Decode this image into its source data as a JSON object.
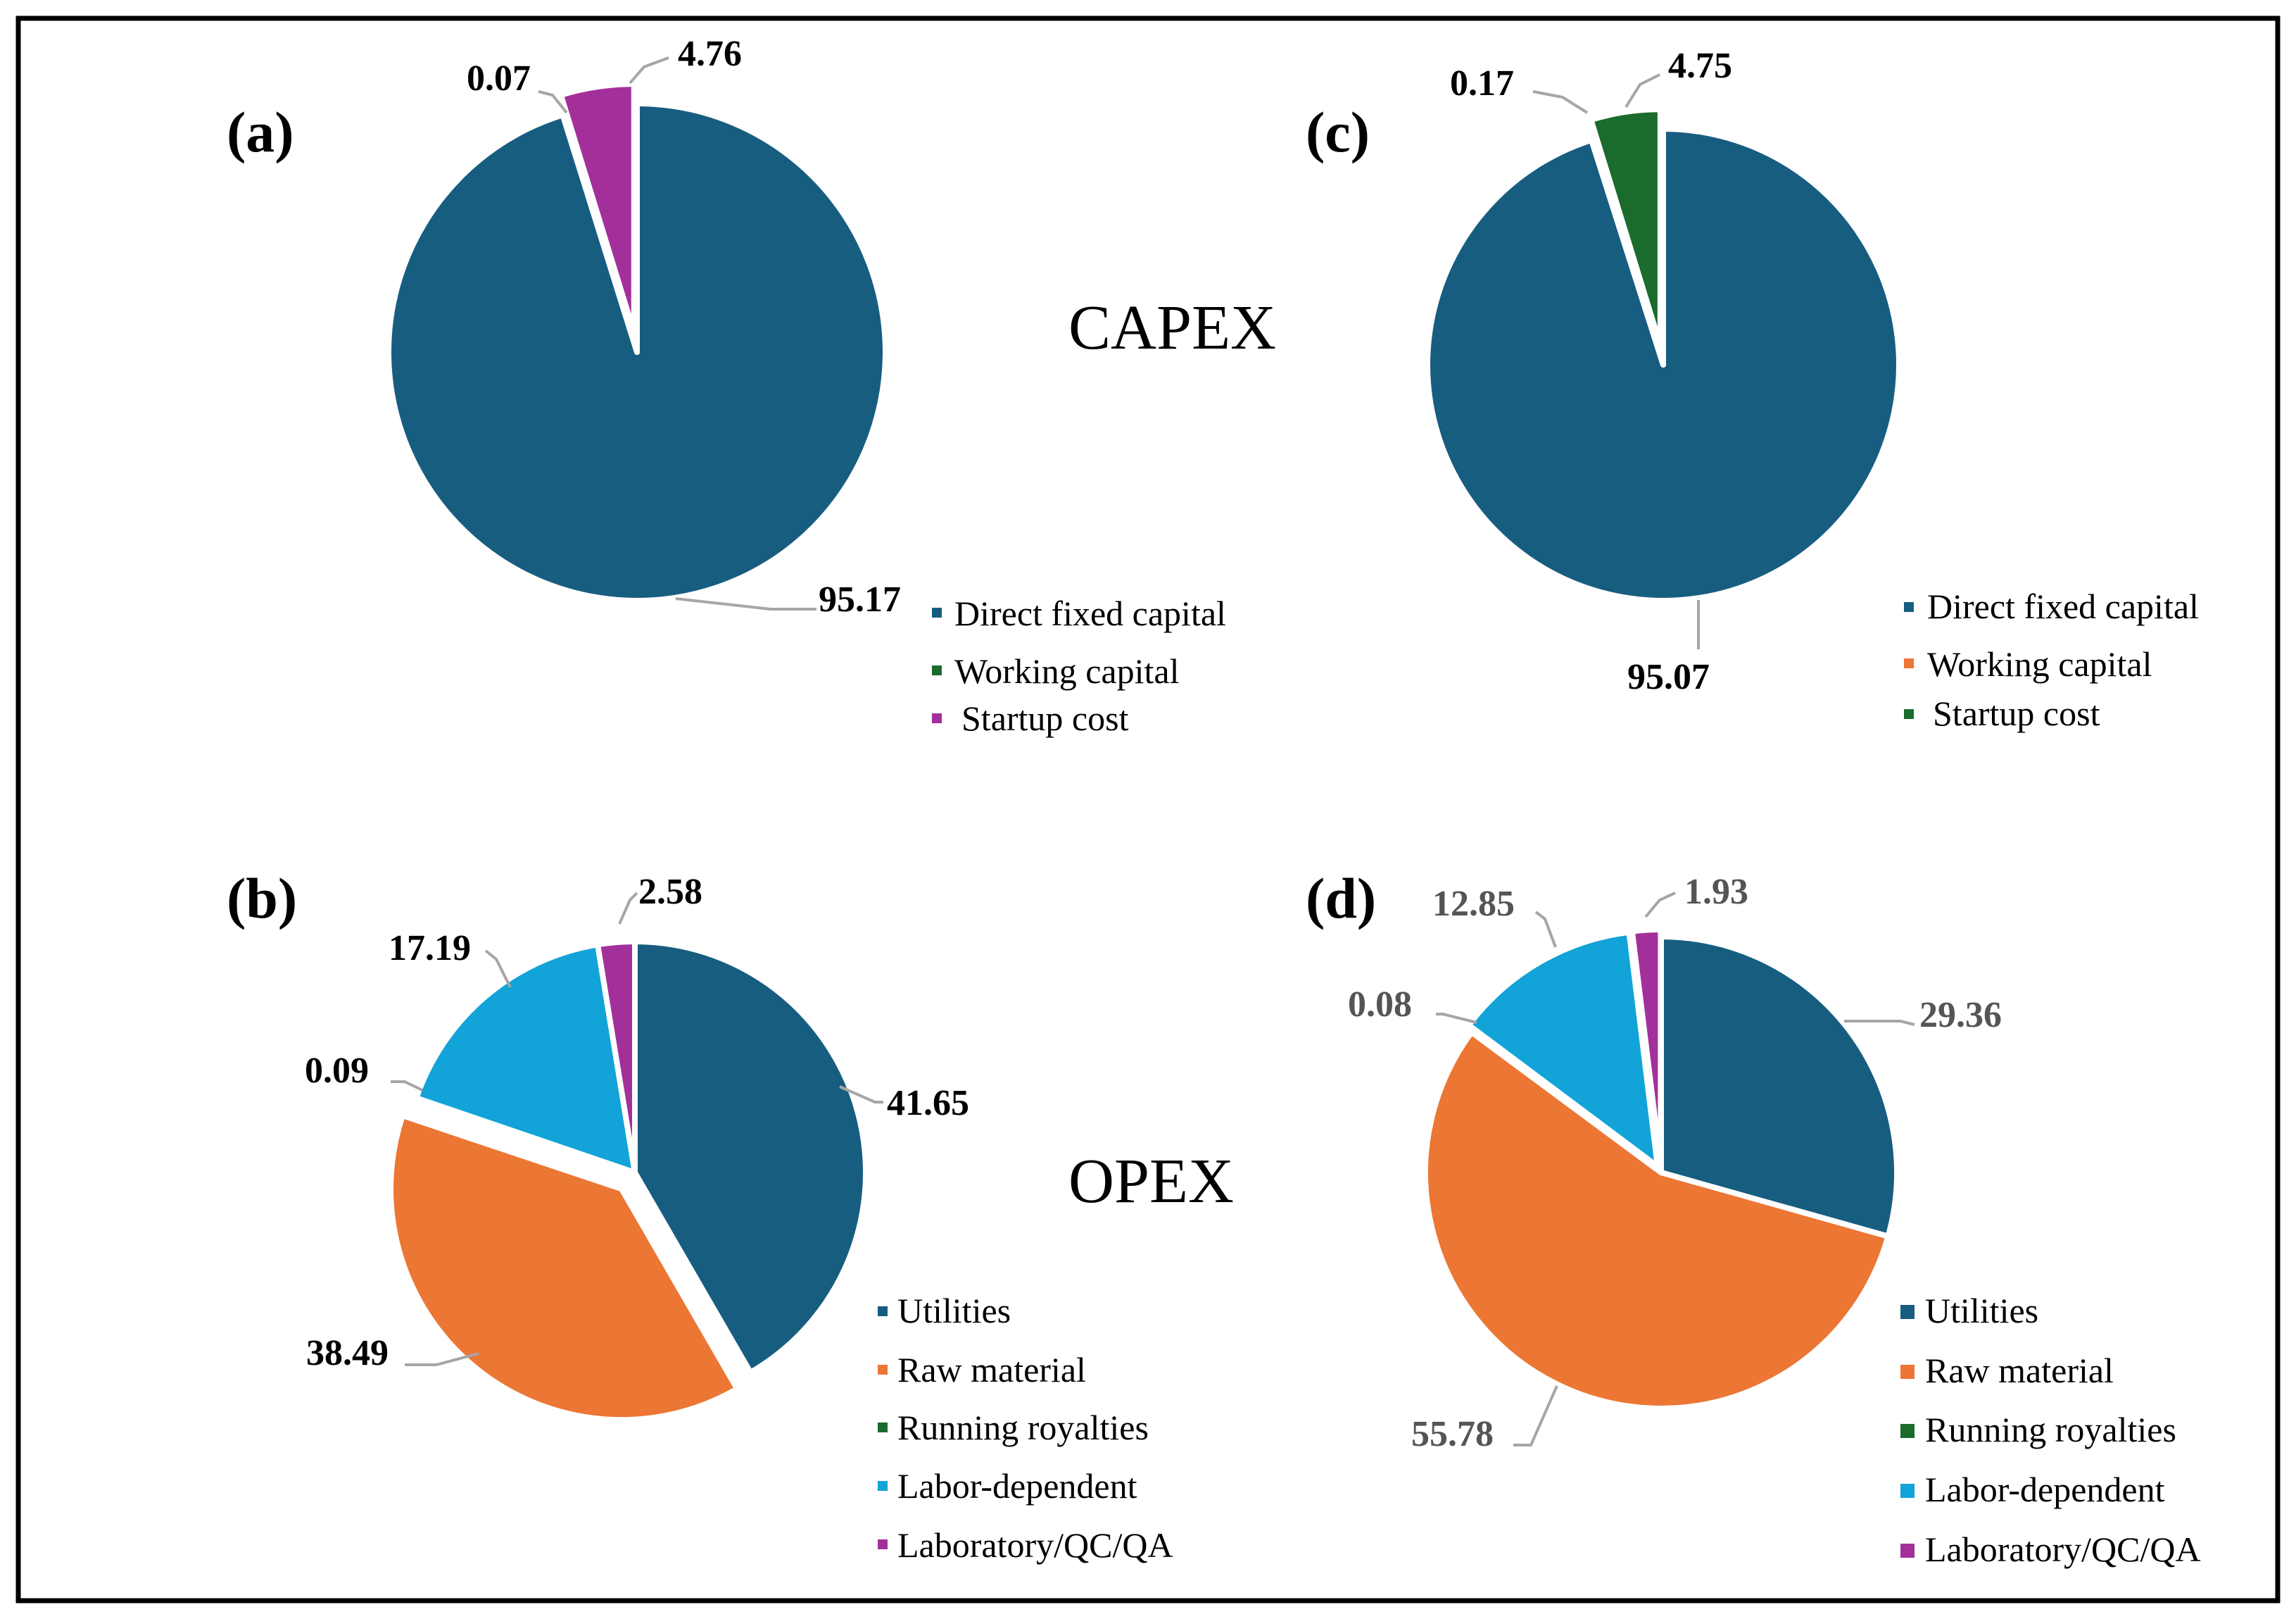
{
  "colors": {
    "direct_fixed_capital": "#175d80",
    "working_capital_a": "#1b6b2d",
    "working_capital_c": "#ec7634",
    "startup_cost_a": "#a3309a",
    "startup_cost_c": "#1b6b2d",
    "utilities": "#175d80",
    "raw_material": "#ec7634",
    "running_royalties": "#1b6b2d",
    "labor_dependent": "#12a3d8",
    "laboratory": "#a3309a"
  },
  "center_labels": {
    "capex": "CAPEX",
    "opex": "OPEX"
  },
  "chart_data": [
    {
      "type": "pie",
      "panel": "(a)",
      "categories": [
        "Direct fixed capital",
        "Working capital",
        "Startup cost"
      ],
      "values": [
        95.17,
        0.07,
        4.76
      ],
      "value_labels": [
        "95.17",
        "0.07",
        "4.76"
      ],
      "colors": [
        "#175d80",
        "#1b6b2d",
        "#a3309a"
      ],
      "legend": "bottom-right"
    },
    {
      "type": "pie",
      "panel": "(c)",
      "categories": [
        "Direct fixed capital",
        "Working capital",
        "Startup cost"
      ],
      "values": [
        95.07,
        0.17,
        4.75
      ],
      "value_labels": [
        "95.07",
        "0.17",
        "4.75"
      ],
      "colors": [
        "#175d80",
        "#ec7634",
        "#1b6b2d"
      ],
      "legend": "bottom-right"
    },
    {
      "type": "pie",
      "panel": "(b)",
      "categories": [
        "Utilities",
        "Raw material",
        "Running royalties",
        "Labor-dependent",
        "Laboratory/QC/QA"
      ],
      "values": [
        41.65,
        38.49,
        0.09,
        17.19,
        2.58
      ],
      "value_labels": [
        "41.65",
        "38.49",
        "0.09",
        "17.19",
        "2.58"
      ],
      "colors": [
        "#175d80",
        "#ec7634",
        "#1b6b2d",
        "#12a3d8",
        "#a3309a"
      ],
      "legend": "bottom-right"
    },
    {
      "type": "pie",
      "panel": "(d)",
      "categories": [
        "Utilities",
        "Raw material",
        "Running royalties",
        "Labor-dependent",
        "Laboratory/QC/QA"
      ],
      "values": [
        29.36,
        55.78,
        0.08,
        12.85,
        1.93
      ],
      "value_labels": [
        "29.36",
        "55.78",
        "0.08",
        "12.85",
        "1.93"
      ],
      "colors": [
        "#175d80",
        "#ec7634",
        "#1b6b2d",
        "#12a3d8",
        "#a3309a"
      ],
      "legend": "bottom-right"
    }
  ]
}
